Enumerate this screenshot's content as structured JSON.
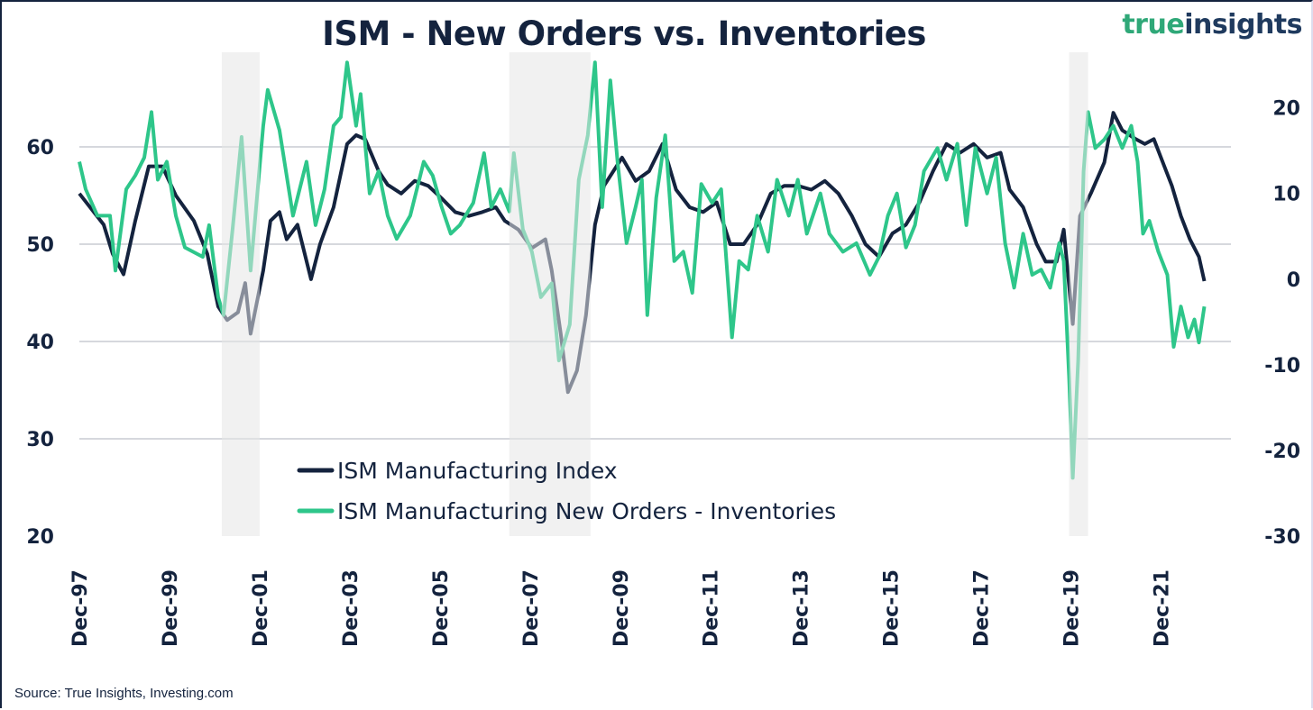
{
  "logo": {
    "part1": "true",
    "part2": "insights"
  },
  "source": "Source: True Insights, Investing.com",
  "colors": {
    "ism": "#14233e",
    "spread": "#2ec68a",
    "grid": "#c8ccd2",
    "recession": "#e6e6e6"
  },
  "chart_data": {
    "type": "line",
    "title": "ISM - New Orders vs. Inventories",
    "x_unit": "decimal year",
    "x_ticks": [
      {
        "value": 1997.92,
        "label": "Dec-97"
      },
      {
        "value": 1999.92,
        "label": "Dec-99"
      },
      {
        "value": 2001.92,
        "label": "Dec-01"
      },
      {
        "value": 2003.92,
        "label": "Dec-03"
      },
      {
        "value": 2005.92,
        "label": "Dec-05"
      },
      {
        "value": 2007.92,
        "label": "Dec-07"
      },
      {
        "value": 2009.92,
        "label": "Dec-09"
      },
      {
        "value": 2011.92,
        "label": "Dec-11"
      },
      {
        "value": 2013.92,
        "label": "Dec-13"
      },
      {
        "value": 2015.92,
        "label": "Dec-15"
      },
      {
        "value": 2017.92,
        "label": "Dec-17"
      },
      {
        "value": 2019.92,
        "label": "Dec-19"
      },
      {
        "value": 2021.92,
        "label": "Dec-21"
      }
    ],
    "xlim": [
      1997.92,
      2023.47
    ],
    "y_left": {
      "ylim": [
        20,
        70
      ],
      "ticks": [
        20,
        30,
        40,
        50,
        60
      ]
    },
    "y_right": {
      "ylim": [
        -30,
        26.8
      ],
      "ticks": [
        -30,
        -20,
        -10,
        0,
        10,
        20
      ]
    },
    "grid": true,
    "legend_position": "bottom-center",
    "recessions": [
      [
        2001.08,
        2001.92
      ],
      [
        2007.46,
        2009.26
      ],
      [
        2019.88,
        2020.3
      ]
    ],
    "series": [
      {
        "name": "ISM Manufacturing Index",
        "axis": "left",
        "points": [
          [
            1997.92,
            55.2
          ],
          [
            1998.46,
            52
          ],
          [
            1998.66,
            49
          ],
          [
            1998.9,
            46.9
          ],
          [
            1999.16,
            52.4
          ],
          [
            1999.46,
            58
          ],
          [
            1999.76,
            58
          ],
          [
            2000.06,
            55
          ],
          [
            2000.46,
            52.4
          ],
          [
            2000.76,
            49
          ],
          [
            2001.0,
            43.6
          ],
          [
            2001.2,
            42.2
          ],
          [
            2001.44,
            43
          ],
          [
            2001.6,
            46
          ],
          [
            2001.72,
            40.8
          ],
          [
            2002.0,
            47.3
          ],
          [
            2002.16,
            52.4
          ],
          [
            2002.36,
            53.3
          ],
          [
            2002.52,
            50.5
          ],
          [
            2002.76,
            52
          ],
          [
            2003.06,
            46.4
          ],
          [
            2003.26,
            50
          ],
          [
            2003.56,
            53.8
          ],
          [
            2003.86,
            60.3
          ],
          [
            2004.06,
            61.2
          ],
          [
            2004.26,
            60.8
          ],
          [
            2004.56,
            57.5
          ],
          [
            2004.76,
            56.1
          ],
          [
            2005.06,
            55.2
          ],
          [
            2005.36,
            56.5
          ],
          [
            2005.66,
            56
          ],
          [
            2005.96,
            54.7
          ],
          [
            2006.26,
            53.3
          ],
          [
            2006.56,
            52.9
          ],
          [
            2006.86,
            53.3
          ],
          [
            2007.16,
            53.8
          ],
          [
            2007.36,
            52.4
          ],
          [
            2007.66,
            51.5
          ],
          [
            2007.96,
            49.6
          ],
          [
            2008.26,
            50.5
          ],
          [
            2008.4,
            47.3
          ],
          [
            2008.6,
            40.8
          ],
          [
            2008.76,
            34.8
          ],
          [
            2008.96,
            37
          ],
          [
            2009.16,
            42.7
          ],
          [
            2009.36,
            52
          ],
          [
            2009.56,
            56
          ],
          [
            2009.96,
            58.9
          ],
          [
            2010.26,
            56.5
          ],
          [
            2010.56,
            57.5
          ],
          [
            2010.86,
            60.3
          ],
          [
            2011.16,
            55.6
          ],
          [
            2011.46,
            53.8
          ],
          [
            2011.76,
            53.3
          ],
          [
            2012.06,
            54.3
          ],
          [
            2012.36,
            50
          ],
          [
            2012.66,
            50
          ],
          [
            2012.96,
            52
          ],
          [
            2013.26,
            55.2
          ],
          [
            2013.56,
            56
          ],
          [
            2013.86,
            56
          ],
          [
            2014.16,
            55.6
          ],
          [
            2014.46,
            56.5
          ],
          [
            2014.76,
            55.2
          ],
          [
            2015.06,
            52.9
          ],
          [
            2015.36,
            50
          ],
          [
            2015.66,
            48.7
          ],
          [
            2015.96,
            51.1
          ],
          [
            2016.26,
            52
          ],
          [
            2016.56,
            54.3
          ],
          [
            2016.86,
            57.5
          ],
          [
            2017.16,
            60.3
          ],
          [
            2017.46,
            59.4
          ],
          [
            2017.76,
            60.3
          ],
          [
            2018.06,
            58.9
          ],
          [
            2018.36,
            59.4
          ],
          [
            2018.56,
            55.6
          ],
          [
            2018.86,
            53.8
          ],
          [
            2019.16,
            50
          ],
          [
            2019.36,
            48.2
          ],
          [
            2019.6,
            48.2
          ],
          [
            2019.76,
            51.5
          ],
          [
            2019.96,
            41.8
          ],
          [
            2020.12,
            52.9
          ],
          [
            2020.36,
            55.2
          ],
          [
            2020.66,
            58.4
          ],
          [
            2020.86,
            63.5
          ],
          [
            2021.06,
            61.7
          ],
          [
            2021.36,
            60.8
          ],
          [
            2021.56,
            60.3
          ],
          [
            2021.76,
            60.8
          ],
          [
            2021.96,
            58.4
          ],
          [
            2022.16,
            56
          ],
          [
            2022.36,
            52.9
          ],
          [
            2022.56,
            50.5
          ],
          [
            2022.76,
            48.7
          ],
          [
            2022.88,
            46.2
          ]
        ]
      },
      {
        "name": "ISM Manufacturing New Orders - Inventories",
        "axis": "right",
        "points": [
          [
            1997.92,
            13.7
          ],
          [
            1998.06,
            10.5
          ],
          [
            1998.32,
            7.4
          ],
          [
            1998.6,
            7.4
          ],
          [
            1998.72,
            1
          ],
          [
            1998.96,
            10.5
          ],
          [
            1999.16,
            12.1
          ],
          [
            1999.36,
            14.2
          ],
          [
            1999.52,
            19.5
          ],
          [
            1999.66,
            11.6
          ],
          [
            1999.86,
            13.7
          ],
          [
            2000.06,
            7.4
          ],
          [
            2000.26,
            3.7
          ],
          [
            2000.66,
            2.6
          ],
          [
            2000.8,
            6.3
          ],
          [
            2001.0,
            -2.1
          ],
          [
            2001.12,
            -4.2
          ],
          [
            2001.32,
            5.8
          ],
          [
            2001.52,
            16.6
          ],
          [
            2001.72,
            1
          ],
          [
            2002.0,
            17.9
          ],
          [
            2002.1,
            22.1
          ],
          [
            2002.36,
            17.4
          ],
          [
            2002.66,
            7.4
          ],
          [
            2002.96,
            13.7
          ],
          [
            2003.16,
            6.3
          ],
          [
            2003.36,
            10.5
          ],
          [
            2003.56,
            17.9
          ],
          [
            2003.72,
            18.9
          ],
          [
            2003.86,
            25.3
          ],
          [
            2004.06,
            17.9
          ],
          [
            2004.16,
            21.6
          ],
          [
            2004.36,
            10
          ],
          [
            2004.56,
            12.6
          ],
          [
            2004.76,
            7.4
          ],
          [
            2004.96,
            4.7
          ],
          [
            2005.26,
            7.4
          ],
          [
            2005.56,
            13.7
          ],
          [
            2005.76,
            12.1
          ],
          [
            2005.96,
            8.4
          ],
          [
            2006.16,
            5.3
          ],
          [
            2006.36,
            6.3
          ],
          [
            2006.66,
            8.9
          ],
          [
            2006.9,
            14.7
          ],
          [
            2007.06,
            8.4
          ],
          [
            2007.26,
            10.5
          ],
          [
            2007.46,
            7.9
          ],
          [
            2007.56,
            14.7
          ],
          [
            2007.76,
            5.8
          ],
          [
            2007.96,
            3.2
          ],
          [
            2008.16,
            -2.1
          ],
          [
            2008.4,
            -0.5
          ],
          [
            2008.56,
            -9.5
          ],
          [
            2008.8,
            -5.3
          ],
          [
            2009.0,
            11.6
          ],
          [
            2009.2,
            16.8
          ],
          [
            2009.36,
            25.3
          ],
          [
            2009.52,
            8.4
          ],
          [
            2009.7,
            23.2
          ],
          [
            2009.86,
            13.7
          ],
          [
            2010.06,
            4.2
          ],
          [
            2010.26,
            8.4
          ],
          [
            2010.4,
            11.6
          ],
          [
            2010.52,
            -4.2
          ],
          [
            2010.72,
            9.5
          ],
          [
            2010.92,
            16.8
          ],
          [
            2011.12,
            2.1
          ],
          [
            2011.32,
            3.2
          ],
          [
            2011.52,
            -1.6
          ],
          [
            2011.72,
            11.1
          ],
          [
            2011.96,
            8.9
          ],
          [
            2012.16,
            10.5
          ],
          [
            2012.4,
            -6.8
          ],
          [
            2012.56,
            2.1
          ],
          [
            2012.76,
            1.1
          ],
          [
            2012.96,
            7.4
          ],
          [
            2013.2,
            3.2
          ],
          [
            2013.4,
            11.6
          ],
          [
            2013.66,
            7.4
          ],
          [
            2013.86,
            11.6
          ],
          [
            2014.06,
            5.3
          ],
          [
            2014.36,
            10
          ],
          [
            2014.56,
            5.3
          ],
          [
            2014.86,
            3.2
          ],
          [
            2015.16,
            4.2
          ],
          [
            2015.46,
            0.5
          ],
          [
            2015.66,
            2.6
          ],
          [
            2015.86,
            7.4
          ],
          [
            2016.06,
            10
          ],
          [
            2016.26,
            3.7
          ],
          [
            2016.46,
            6.3
          ],
          [
            2016.66,
            12.6
          ],
          [
            2016.96,
            15.3
          ],
          [
            2017.16,
            11.6
          ],
          [
            2017.4,
            15.8
          ],
          [
            2017.6,
            6.3
          ],
          [
            2017.8,
            15.3
          ],
          [
            2018.06,
            10
          ],
          [
            2018.26,
            14.2
          ],
          [
            2018.46,
            4.2
          ],
          [
            2018.66,
            -1
          ],
          [
            2018.86,
            5.3
          ],
          [
            2019.06,
            0.5
          ],
          [
            2019.26,
            1.1
          ],
          [
            2019.46,
            -1
          ],
          [
            2019.66,
            4.2
          ],
          [
            2019.76,
            2.1
          ],
          [
            2019.88,
            -11.6
          ],
          [
            2019.96,
            -23.2
          ],
          [
            2020.08,
            -9.5
          ],
          [
            2020.2,
            12.6
          ],
          [
            2020.3,
            19.5
          ],
          [
            2020.46,
            15.3
          ],
          [
            2020.66,
            16.3
          ],
          [
            2020.86,
            17.9
          ],
          [
            2021.06,
            15.3
          ],
          [
            2021.26,
            17.9
          ],
          [
            2021.4,
            13.7
          ],
          [
            2021.52,
            5.3
          ],
          [
            2021.66,
            6.8
          ],
          [
            2021.86,
            3.2
          ],
          [
            2022.06,
            0.5
          ],
          [
            2022.2,
            -7.9
          ],
          [
            2022.36,
            -3.2
          ],
          [
            2022.52,
            -6.8
          ],
          [
            2022.66,
            -4.7
          ],
          [
            2022.76,
            -7.4
          ],
          [
            2022.88,
            -3.2
          ]
        ]
      }
    ]
  }
}
